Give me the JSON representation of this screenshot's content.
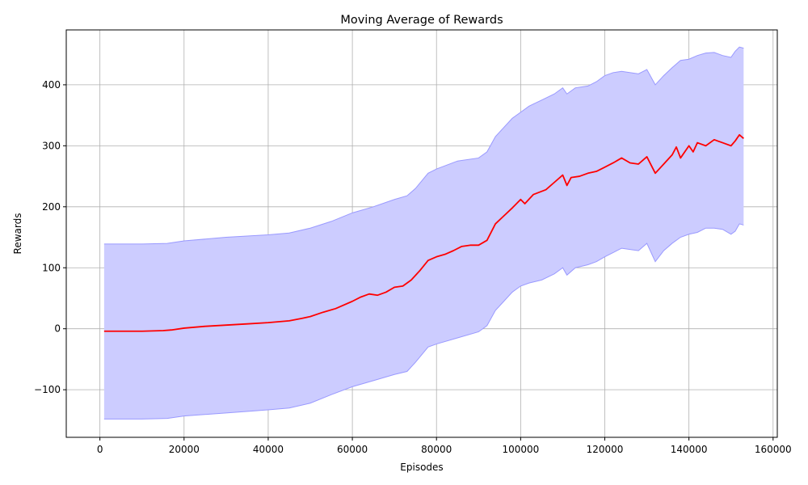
{
  "chart_data": {
    "type": "line",
    "title": "Moving Average of Rewards",
    "xlabel": "Episodes",
    "ylabel": "Rewards",
    "xlim": [
      -8000,
      161000
    ],
    "ylim": [
      -178,
      490
    ],
    "x_ticks": [
      0,
      20000,
      40000,
      60000,
      80000,
      100000,
      120000,
      140000,
      160000
    ],
    "x_tick_labels": [
      "0",
      "20000",
      "40000",
      "60000",
      "80000",
      "100000",
      "120000",
      "140000",
      "160000"
    ],
    "y_ticks": [
      -100,
      0,
      100,
      200,
      300,
      400
    ],
    "y_tick_labels": [
      "−100",
      "0",
      "100",
      "200",
      "300",
      "400"
    ],
    "grid": true,
    "colors": {
      "line": "#ff0000",
      "band_fill": "#ccccff",
      "band_edge": "#9999ff",
      "grid": "#b0b0b0"
    },
    "series": [
      {
        "kind": "line",
        "x": [
          1000,
          5000,
          10000,
          15000,
          17000,
          20000,
          25000,
          30000,
          35000,
          40000,
          45000,
          48000,
          50000,
          53000,
          56000,
          60000,
          62000,
          64000,
          66000,
          68000,
          70000,
          72000,
          74000,
          76000,
          78000,
          80000,
          82000,
          84000,
          86000,
          88000,
          90000,
          92000,
          94000,
          96000,
          98000,
          100000,
          101000,
          103000,
          106000,
          108000,
          110000,
          111000,
          112000,
          114000,
          116000,
          118000,
          120000,
          122000,
          124000,
          126000,
          128000,
          130000,
          132000,
          134000,
          136000,
          137000,
          138000,
          140000,
          141000,
          142000,
          144000,
          146000,
          148000,
          150000,
          151000,
          152000,
          153000
        ],
        "y": [
          -4,
          -4,
          -4,
          -3,
          -2,
          1,
          4,
          6,
          8,
          10,
          13,
          17,
          20,
          27,
          33,
          45,
          52,
          57,
          55,
          60,
          68,
          70,
          80,
          95,
          112,
          118,
          122,
          128,
          135,
          137,
          137,
          145,
          172,
          185,
          198,
          212,
          205,
          220,
          228,
          240,
          252,
          235,
          248,
          250,
          255,
          258,
          265,
          272,
          280,
          272,
          270,
          282,
          255,
          270,
          285,
          298,
          280,
          300,
          290,
          305,
          300,
          310,
          305,
          300,
          308,
          318,
          312
        ]
      },
      {
        "kind": "band",
        "x": [
          1000,
          10000,
          16000,
          20000,
          30000,
          40000,
          45000,
          50000,
          55000,
          60000,
          65000,
          70000,
          73000,
          75000,
          78000,
          80000,
          85000,
          90000,
          92000,
          94000,
          96000,
          98000,
          100000,
          102000,
          105000,
          108000,
          110000,
          111000,
          113000,
          116000,
          118000,
          120000,
          122000,
          124000,
          128000,
          130000,
          132000,
          134000,
          136000,
          138000,
          140000,
          142000,
          144000,
          146000,
          148000,
          150000,
          151000,
          152000,
          153000
        ],
        "upper": [
          139,
          139,
          140,
          144,
          150,
          154,
          157,
          165,
          176,
          190,
          200,
          212,
          218,
          230,
          255,
          262,
          275,
          280,
          290,
          315,
          330,
          345,
          355,
          365,
          375,
          385,
          395,
          385,
          395,
          398,
          405,
          415,
          420,
          422,
          418,
          425,
          400,
          415,
          428,
          440,
          442,
          448,
          452,
          453,
          448,
          445,
          455,
          462,
          460
        ],
        "lower": [
          -148,
          -148,
          -147,
          -143,
          -138,
          -133,
          -130,
          -122,
          -108,
          -95,
          -85,
          -75,
          -70,
          -55,
          -30,
          -25,
          -15,
          -5,
          5,
          30,
          45,
          60,
          70,
          75,
          80,
          90,
          100,
          88,
          100,
          105,
          110,
          118,
          125,
          132,
          128,
          140,
          110,
          128,
          140,
          150,
          155,
          158,
          165,
          165,
          163,
          155,
          160,
          172,
          170
        ]
      }
    ]
  }
}
